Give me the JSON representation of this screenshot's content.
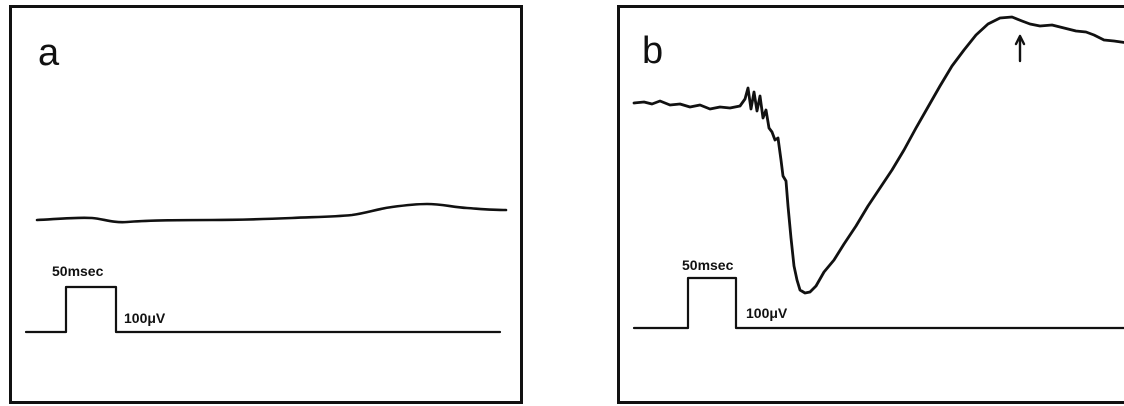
{
  "figure": {
    "panels": [
      {
        "id": "a",
        "letter": "a",
        "time_scale_label": "50msec",
        "voltage_scale_label": "100μV"
      },
      {
        "id": "b",
        "letter": "b",
        "time_scale_label": "50msec",
        "voltage_scale_label": "100μV",
        "peak_marker": "arrow"
      }
    ],
    "colors": {
      "ink": "#111111",
      "background": "#ffffff"
    }
  }
}
